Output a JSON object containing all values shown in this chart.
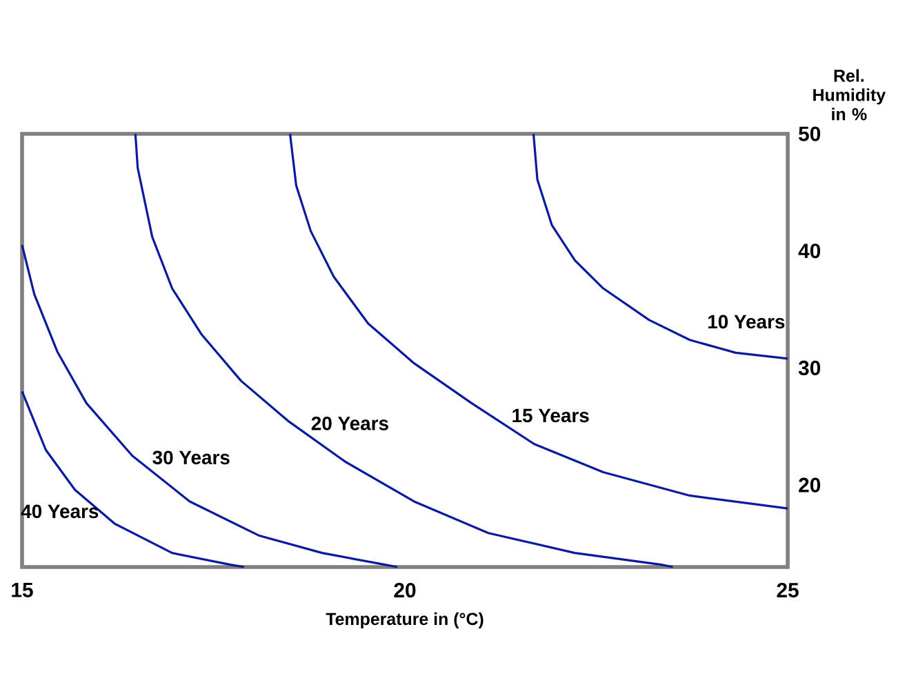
{
  "chart_data": {
    "type": "line",
    "xlabel": "Temperature in (°C)",
    "ylabel": "Rel. Humidity in %",
    "xlim": [
      15,
      25
    ],
    "ylim": [
      13,
      50
    ],
    "xticks": [
      15,
      20,
      25
    ],
    "yticks": [
      20,
      30,
      40,
      50
    ],
    "grid": false,
    "marker": "none",
    "line_style": "solid",
    "series": [
      {
        "name": "10 Years",
        "color": "#0a1aa0",
        "x": [
          21.68,
          21.73,
          21.92,
          22.22,
          22.59,
          23.19,
          23.72,
          24.32,
          25.0
        ],
        "values": [
          50,
          46.1,
          42.2,
          39.2,
          36.8,
          34.1,
          32.4,
          31.3,
          30.8
        ]
      },
      {
        "name": "15 Years",
        "color": "#0a1aa0",
        "x": [
          18.5,
          18.58,
          18.77,
          19.07,
          19.52,
          20.12,
          20.87,
          21.69,
          22.59,
          23.72,
          25.0
        ],
        "values": [
          50,
          45.6,
          41.7,
          37.8,
          33.8,
          30.4,
          27.0,
          23.5,
          21.1,
          19.1,
          18.0
        ]
      },
      {
        "name": "20 Years",
        "color": "#0a1aa0",
        "x": [
          16.48,
          16.51,
          16.7,
          16.96,
          17.34,
          17.86,
          18.47,
          19.22,
          20.12,
          21.09,
          22.22,
          23.35,
          23.5
        ],
        "values": [
          50,
          47.1,
          41.2,
          36.8,
          32.9,
          28.9,
          25.5,
          22.0,
          18.6,
          15.9,
          14.2,
          13.2,
          13
        ]
      },
      {
        "name": "30 Years",
        "color": "#0a1aa0",
        "x": [
          15.0,
          15.16,
          15.46,
          15.84,
          16.44,
          17.19,
          18.09,
          18.92,
          19.74,
          19.9
        ],
        "values": [
          40.5,
          36.3,
          31.4,
          27.0,
          22.5,
          18.6,
          15.7,
          14.2,
          13.2,
          13
        ]
      },
      {
        "name": "40 Years",
        "color": "#0a1aa0",
        "x": [
          15.0,
          15.31,
          15.69,
          16.21,
          16.96,
          17.72,
          17.9
        ],
        "values": [
          28.0,
          23.0,
          19.6,
          16.7,
          14.2,
          13.2,
          13
        ]
      }
    ]
  }
}
